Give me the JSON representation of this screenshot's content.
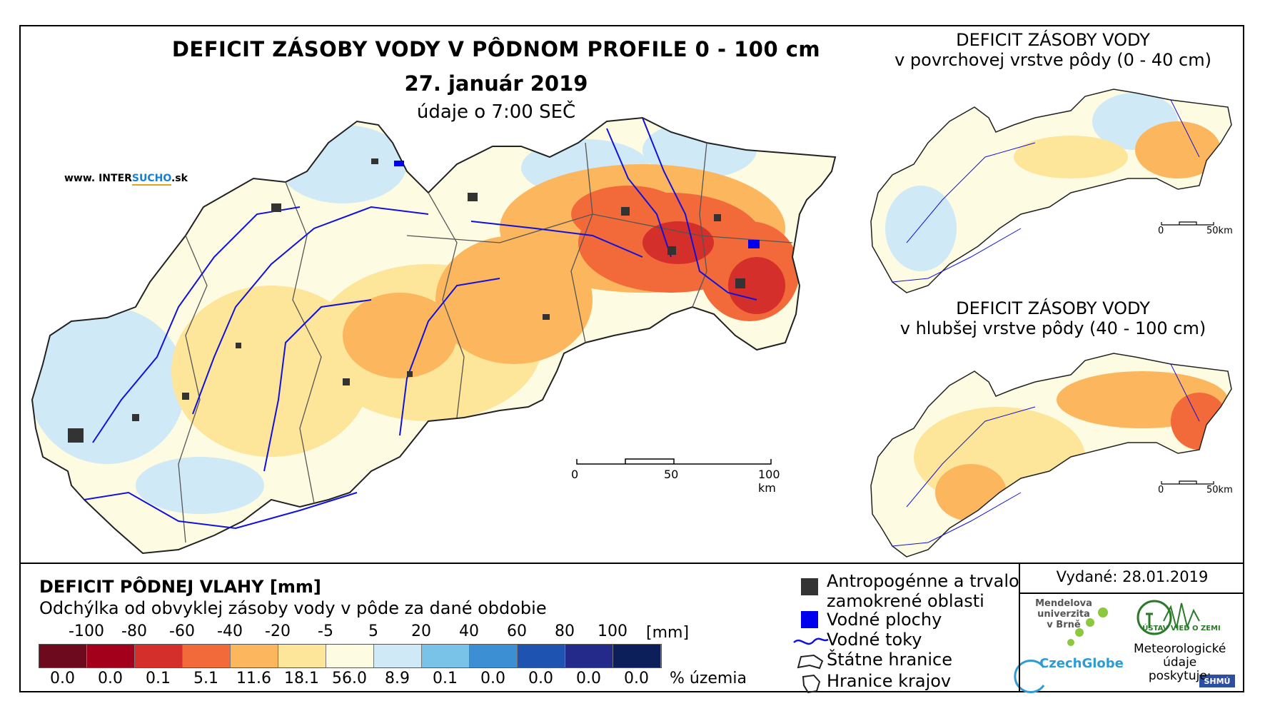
{
  "map": {
    "title": "DEFICIT ZÁSOBY VODY V PÔDNOM PROFILE 0 - 100 cm",
    "date": "27. január 2019",
    "time_note": "údaje o 7:00 SEČ",
    "website_prefix": "www. INTER",
    "website_highlight": "SUCHO",
    "website_suffix": ".sk",
    "scale": {
      "labels": [
        "0",
        "50",
        "100 km"
      ]
    }
  },
  "inset_top": {
    "title_line1": "DEFICIT ZÁSOBY VODY",
    "title_line2": "v povrchovej vrstve pôdy (0 - 40 cm)",
    "scale": {
      "labels": [
        "0",
        "50km"
      ]
    }
  },
  "inset_bottom": {
    "title_line1": "DEFICIT ZÁSOBY VODY",
    "title_line2": "v hlubšej vrstve pôdy (40 - 100 cm)",
    "scale": {
      "labels": [
        "0",
        "50km"
      ]
    }
  },
  "legend": {
    "title": "DEFICIT PÔDNEJ VLAHY [mm]",
    "subtitle": "Odchýlka od obvyklej zásoby vody v pôde za dané obdobie",
    "breaks": [
      "-100",
      "-80",
      "-60",
      "-40",
      "-20",
      "-5",
      "5",
      "20",
      "40",
      "60",
      "80",
      "100"
    ],
    "unit": "[mm]",
    "colors": [
      "#6e0a1e",
      "#a3001c",
      "#d42f2a",
      "#f2693a",
      "#fbb65e",
      "#fde59a",
      "#fefbe3",
      "#cfe9f6",
      "#79c2e8",
      "#3c8fd2",
      "#1f53b1",
      "#232a8a",
      "#0d1f5a"
    ],
    "percentages": [
      "0.0",
      "0.0",
      "0.1",
      "5.1",
      "11.6",
      "18.1",
      "56.0",
      "8.9",
      "0.1",
      "0.0",
      "0.0",
      "0.0",
      "0.0"
    ],
    "percent_unit": "% územia"
  },
  "symbols": {
    "urban_line1": "Antropogénne a trvalo",
    "urban_line2": "zamokrené oblasti",
    "water": "Vodné plochy",
    "rivers": "Vodné toky",
    "state_border": "Štátne hranice",
    "region_border": "Hranice krajov"
  },
  "footer": {
    "issued": "Vydané: 28.01.2019",
    "mendel_line1": "Mendelova",
    "mendel_line2": "univerzita",
    "mendel_line3": "v Brně",
    "czechglobe": "CzechGlobe",
    "uvgz": "ÚSTAV VIED O ZEMI",
    "meteo_line1": "Meteorologické",
    "meteo_line2": "údaje",
    "meteo_line3": "poskytuje:",
    "shmu": "SHMÚ"
  }
}
